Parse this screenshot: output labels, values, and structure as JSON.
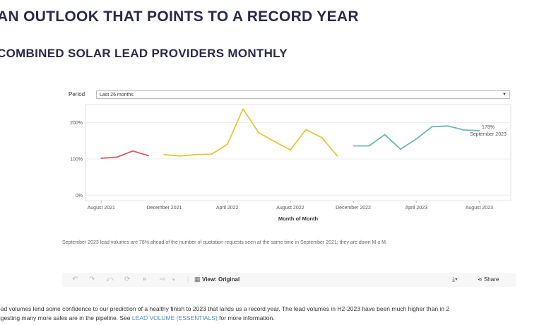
{
  "headline": "AN OUTLOOK THAT POINTS TO A RECORD YEAR",
  "subheadline": "COMBINED SOLAR LEAD PROVIDERS MONTHLY",
  "filter": {
    "label": "Period",
    "value": "Last 26 months"
  },
  "caption": "September 2023 lead volumes are 78% ahead of the number of quotation requests seen at the same time in September 2021; they are down M o M.",
  "toolbar": {
    "view_label": "View: Original",
    "share_label": "Share"
  },
  "body": {
    "line1": "ead volumes lend some confidence to our prediction of a healthy finish to 2023 that lands us a record year. The lead volumes in H2-2023 have been much higher than in 2",
    "line2_pre": "ggesting many more sales are in the pipeline.  See ",
    "link": "LEAD VOLUME (ESSENTIALS)",
    "line2_post": " for more information."
  },
  "colors": {
    "red": "#e05757",
    "yellow": "#e8c63a",
    "teal": "#6fb8b0",
    "heading": "#2b2a4c"
  },
  "chart_data": {
    "type": "line",
    "xlabel": "Month of Month",
    "ylabel": "",
    "ylim": [
      -15,
      250
    ],
    "y_ticks": [
      {
        "value": 0,
        "label": "0%"
      },
      {
        "value": 100,
        "label": "100%"
      },
      {
        "value": 200,
        "label": "200%"
      }
    ],
    "x_ticks": [
      "August 2021",
      "December 2021",
      "April 2022",
      "August 2022",
      "December 2022",
      "April 2023",
      "August 2023"
    ],
    "x_tick_dates": [
      "2021-08",
      "2021-12",
      "2022-04",
      "2022-08",
      "2022-12",
      "2023-04",
      "2023-08"
    ],
    "x_range": [
      "2021-07",
      "2023-10"
    ],
    "series": [
      {
        "color": "#e05757",
        "points": [
          [
            "2021-08",
            102
          ],
          [
            "2021-09",
            105
          ],
          [
            "2021-10",
            122
          ],
          [
            "2021-11",
            109
          ]
        ]
      },
      {
        "color": "#e8c63a",
        "points": [
          [
            "2021-12",
            112
          ],
          [
            "2022-01",
            108
          ],
          [
            "2022-02",
            112
          ],
          [
            "2022-03",
            113
          ],
          [
            "2022-04",
            140
          ],
          [
            "2022-05",
            238
          ],
          [
            "2022-06",
            172
          ],
          [
            "2022-07",
            148
          ],
          [
            "2022-08",
            125
          ],
          [
            "2022-09",
            181
          ],
          [
            "2022-10",
            159
          ],
          [
            "2022-11",
            108
          ]
        ]
      },
      {
        "color": "#6fb8b0",
        "points": [
          [
            "2022-12",
            136
          ],
          [
            "2023-01",
            136
          ],
          [
            "2023-02",
            167
          ],
          [
            "2023-03",
            127
          ],
          [
            "2023-04",
            155
          ],
          [
            "2023-05",
            189
          ],
          [
            "2023-06",
            191
          ],
          [
            "2023-07",
            180
          ],
          [
            "2023-08",
            178
          ]
        ]
      }
    ],
    "annotation": {
      "value_label": "178%",
      "date_label": "September 2023"
    }
  }
}
